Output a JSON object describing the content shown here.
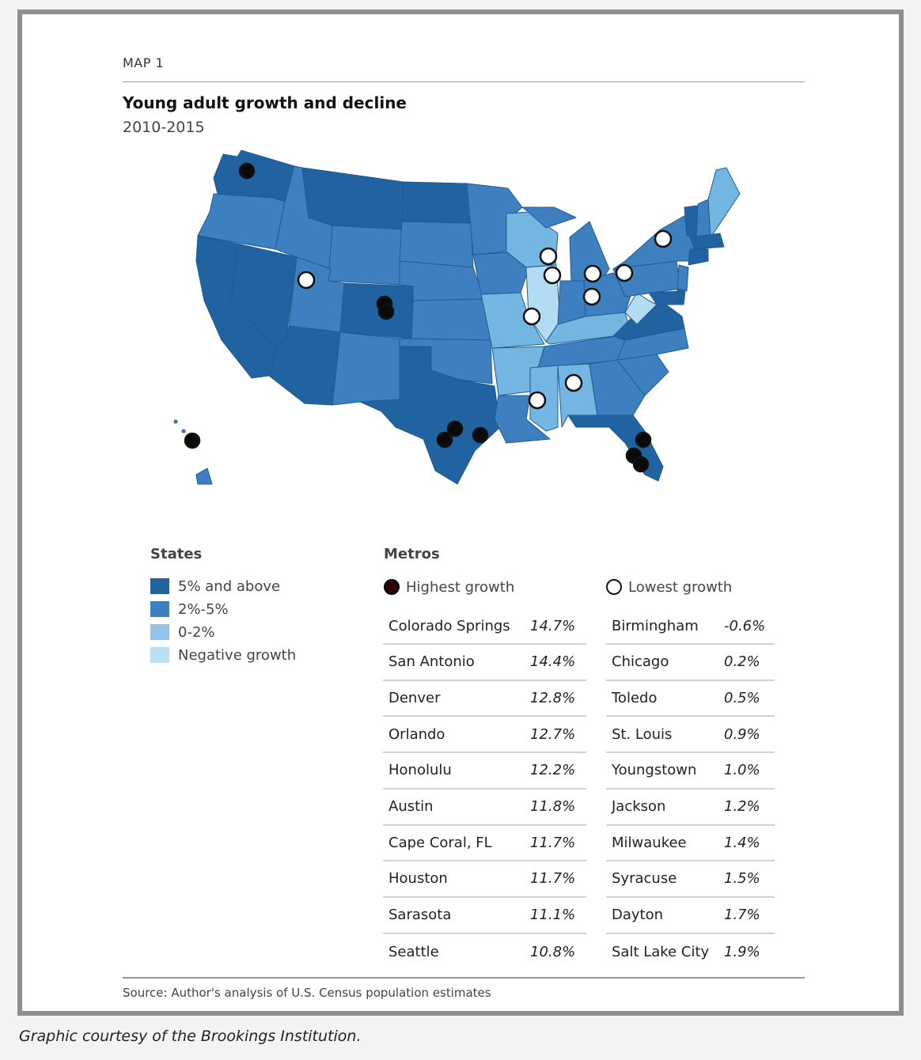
{
  "header": {
    "map_label": "MAP 1",
    "title": "Young adult growth and decline",
    "subtitle": "2010-2015"
  },
  "colors": {
    "tier1": "#2162a0",
    "tier2": "#3e80bf",
    "tier3": "#74b6e2",
    "tier4": "#b3dcf3",
    "border": "#1b4e80",
    "dot_high": "#0a0a0a",
    "dot_low": "#ffffff"
  },
  "legend": {
    "states_title": "States",
    "items": [
      {
        "label": "5% and above",
        "color": "#2162a0"
      },
      {
        "label": "2%-5%",
        "color": "#3e80bf"
      },
      {
        "label": "0-2%",
        "color": "#94c4e9"
      },
      {
        "label": "Negative growth",
        "color": "#b8e1f6"
      }
    ],
    "metros_title": "Metros",
    "highest_label": "Highest growth",
    "lowest_label": "Lowest growth"
  },
  "highest": [
    {
      "city": "Colorado Springs",
      "value": "14.7%"
    },
    {
      "city": "San Antonio",
      "value": "14.4%"
    },
    {
      "city": "Denver",
      "value": "12.8%"
    },
    {
      "city": "Orlando",
      "value": "12.7%"
    },
    {
      "city": "Honolulu",
      "value": "12.2%"
    },
    {
      "city": "Austin",
      "value": "11.8%"
    },
    {
      "city": "Cape Coral, FL",
      "value": "11.7%"
    },
    {
      "city": "Houston",
      "value": "11.7%"
    },
    {
      "city": "Sarasota",
      "value": "11.1%"
    },
    {
      "city": "Seattle",
      "value": "10.8%"
    }
  ],
  "lowest": [
    {
      "city": "Birmingham",
      "value": "-0.6%"
    },
    {
      "city": "Chicago",
      "value": "0.2%"
    },
    {
      "city": "Toledo",
      "value": "0.5%"
    },
    {
      "city": "St. Louis",
      "value": "0.9%"
    },
    {
      "city": "Youngstown",
      "value": "1.0%"
    },
    {
      "city": "Jackson",
      "value": "1.2%"
    },
    {
      "city": "Milwaukee",
      "value": "1.4%"
    },
    {
      "city": "Syracuse",
      "value": "1.5%"
    },
    {
      "city": "Dayton",
      "value": "1.7%"
    },
    {
      "city": "Salt Lake City",
      "value": "1.9%"
    }
  ],
  "footer": {
    "source": "Source: Author's analysis of U.S. Census population estimates",
    "caption": "Graphic courtesy of the Brookings Institution."
  }
}
